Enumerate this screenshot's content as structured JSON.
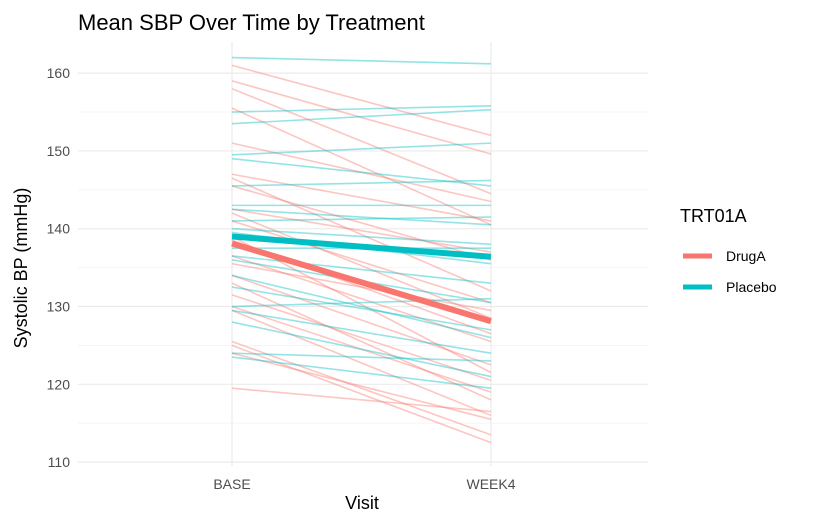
{
  "chart_data": {
    "type": "line",
    "title": "Mean SBP Over Time by Treatment",
    "xlabel": "Visit",
    "ylabel": "Systolic BP (mmHg)",
    "categories": [
      "BASE",
      "WEEK4"
    ],
    "ylim": [
      109.5,
      164
    ],
    "yticks": [
      110,
      120,
      130,
      140,
      150,
      160
    ],
    "grid": true,
    "legend": {
      "title": "TRT01A",
      "placement": "right",
      "entries": [
        "DrugA",
        "Placebo"
      ]
    },
    "colors": {
      "DrugA": "#f8766d",
      "Placebo": "#00bfc4"
    },
    "mean_series": [
      {
        "name": "DrugA",
        "values": [
          138.1,
          128.1
        ]
      },
      {
        "name": "Placebo",
        "values": [
          139.0,
          136.4
        ]
      }
    ],
    "subject_series": [
      {
        "group": "DrugA",
        "values": [
          161.0,
          152.0
        ]
      },
      {
        "group": "DrugA",
        "values": [
          159.0,
          149.6
        ]
      },
      {
        "group": "DrugA",
        "values": [
          158.0,
          144.5
        ]
      },
      {
        "group": "DrugA",
        "values": [
          155.5,
          140.5
        ]
      },
      {
        "group": "DrugA",
        "values": [
          151.0,
          143.5
        ]
      },
      {
        "group": "DrugA",
        "values": [
          147.0,
          141.0
        ]
      },
      {
        "group": "DrugA",
        "values": [
          146.5,
          132.0
        ]
      },
      {
        "group": "DrugA",
        "values": [
          145.5,
          136.0
        ]
      },
      {
        "group": "DrugA",
        "values": [
          142.5,
          137.0
        ]
      },
      {
        "group": "DrugA",
        "values": [
          142.0,
          128.5
        ]
      },
      {
        "group": "DrugA",
        "values": [
          141.0,
          130.5
        ]
      },
      {
        "group": "DrugA",
        "values": [
          139.0,
          121.5
        ]
      },
      {
        "group": "DrugA",
        "values": [
          138.5,
          126.5
        ]
      },
      {
        "group": "DrugA",
        "values": [
          136.5,
          125.5
        ]
      },
      {
        "group": "DrugA",
        "values": [
          135.5,
          129.5
        ]
      },
      {
        "group": "DrugA",
        "values": [
          134.0,
          122.5
        ]
      },
      {
        "group": "DrugA",
        "values": [
          133.0,
          118.0
        ]
      },
      {
        "group": "DrugA",
        "values": [
          131.5,
          120.5
        ]
      },
      {
        "group": "DrugA",
        "values": [
          130.0,
          119.0
        ]
      },
      {
        "group": "DrugA",
        "values": [
          129.5,
          116.0
        ]
      },
      {
        "group": "DrugA",
        "values": [
          125.5,
          113.5
        ]
      },
      {
        "group": "DrugA",
        "values": [
          125.0,
          112.5
        ]
      },
      {
        "group": "DrugA",
        "values": [
          124.0,
          115.5
        ]
      },
      {
        "group": "DrugA",
        "values": [
          119.5,
          116.5
        ]
      },
      {
        "group": "Placebo",
        "values": [
          162.0,
          161.2
        ]
      },
      {
        "group": "Placebo",
        "values": [
          155.0,
          155.8
        ]
      },
      {
        "group": "Placebo",
        "values": [
          153.5,
          155.3
        ]
      },
      {
        "group": "Placebo",
        "values": [
          149.5,
          151.0
        ]
      },
      {
        "group": "Placebo",
        "values": [
          149.0,
          145.5
        ]
      },
      {
        "group": "Placebo",
        "values": [
          145.5,
          146.2
        ]
      },
      {
        "group": "Placebo",
        "values": [
          143.0,
          143.0
        ]
      },
      {
        "group": "Placebo",
        "values": [
          142.5,
          140.5
        ]
      },
      {
        "group": "Placebo",
        "values": [
          141.0,
          141.5
        ]
      },
      {
        "group": "Placebo",
        "values": [
          140.0,
          138.0
        ]
      },
      {
        "group": "Placebo",
        "values": [
          139.5,
          135.5
        ]
      },
      {
        "group": "Placebo",
        "values": [
          137.5,
          137.5
        ]
      },
      {
        "group": "Placebo",
        "values": [
          136.5,
          133.0
        ]
      },
      {
        "group": "Placebo",
        "values": [
          136.0,
          130.5
        ]
      },
      {
        "group": "Placebo",
        "values": [
          134.0,
          126.0
        ]
      },
      {
        "group": "Placebo",
        "values": [
          132.5,
          127.0
        ]
      },
      {
        "group": "Placebo",
        "values": [
          130.0,
          131.0
        ]
      },
      {
        "group": "Placebo",
        "values": [
          129.5,
          124.0
        ]
      },
      {
        "group": "Placebo",
        "values": [
          128.0,
          121.0
        ]
      },
      {
        "group": "Placebo",
        "values": [
          124.0,
          123.0
        ]
      },
      {
        "group": "Placebo",
        "values": [
          123.5,
          119.5
        ]
      }
    ]
  }
}
